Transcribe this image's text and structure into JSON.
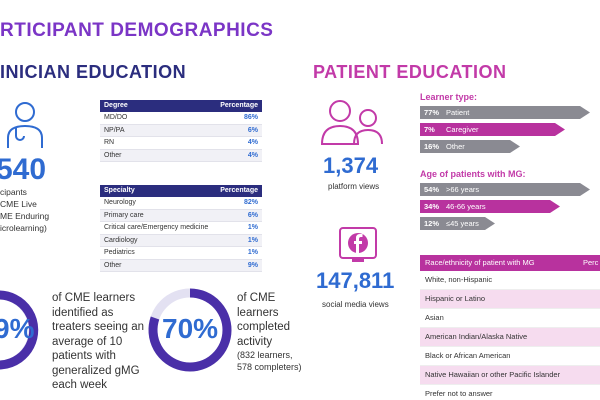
{
  "header": {
    "title": "RTICIPANT DEMOGRAPHICS"
  },
  "clinician": {
    "title": "INICIAN EDUCATION",
    "count": "540",
    "count_lines": [
      "cipants",
      "CME Live",
      "ME Enduring",
      "icrolearning)"
    ],
    "degree_table": {
      "columns": [
        "Degree",
        "Percentage"
      ],
      "rows": [
        [
          "MD/DO",
          "86%"
        ],
        [
          "NP/PA",
          "6%"
        ],
        [
          "RN",
          "4%"
        ],
        [
          "Other",
          "4%"
        ]
      ]
    },
    "specialty_table": {
      "columns": [
        "Specialty",
        "Percentage"
      ],
      "rows": [
        [
          "Neurology",
          "82%"
        ],
        [
          "Primary care",
          "6%"
        ],
        [
          "Critical care/Emergency medicine",
          "1%"
        ],
        [
          "Cardiology",
          "1%"
        ],
        [
          "Pediatrics",
          "1%"
        ],
        [
          "Other",
          "9%"
        ]
      ]
    },
    "stat1": {
      "value": "9%",
      "text": "of CME learners identified as treaters seeing an average of 10 patients with generalized gMG each week"
    },
    "stat2": {
      "value": "70%",
      "lines": [
        "of CME",
        "learners",
        "completed",
        "activity"
      ],
      "note_lines": [
        "(832 learners,",
        "578 completers)"
      ]
    }
  },
  "patient": {
    "title": "PATIENT EDUCATION",
    "platform": {
      "value": "1,374",
      "label": "platform views"
    },
    "social": {
      "value": "147,811",
      "label": "social media views"
    },
    "learner_type": {
      "title": "Learner type:",
      "rows": [
        [
          "77%",
          "Patient"
        ],
        [
          "7%",
          "Caregiver"
        ],
        [
          "16%",
          "Other"
        ]
      ]
    },
    "age": {
      "title": "Age of patients with MG:",
      "rows": [
        [
          "54%",
          ">66 years"
        ],
        [
          "34%",
          "46-66 years"
        ],
        [
          "12%",
          "≤45 years"
        ]
      ]
    },
    "race_table": {
      "columns": [
        "Race/ethnicity of patient with MG",
        "Perc"
      ],
      "rows": [
        "White, non-Hispanic",
        "Hispanic or Latino",
        "Asian",
        "American Indian/Alaska Native",
        "Black or African American",
        "Native Hawaiian or other Pacific Islander",
        "Prefer not to answer"
      ]
    }
  }
}
